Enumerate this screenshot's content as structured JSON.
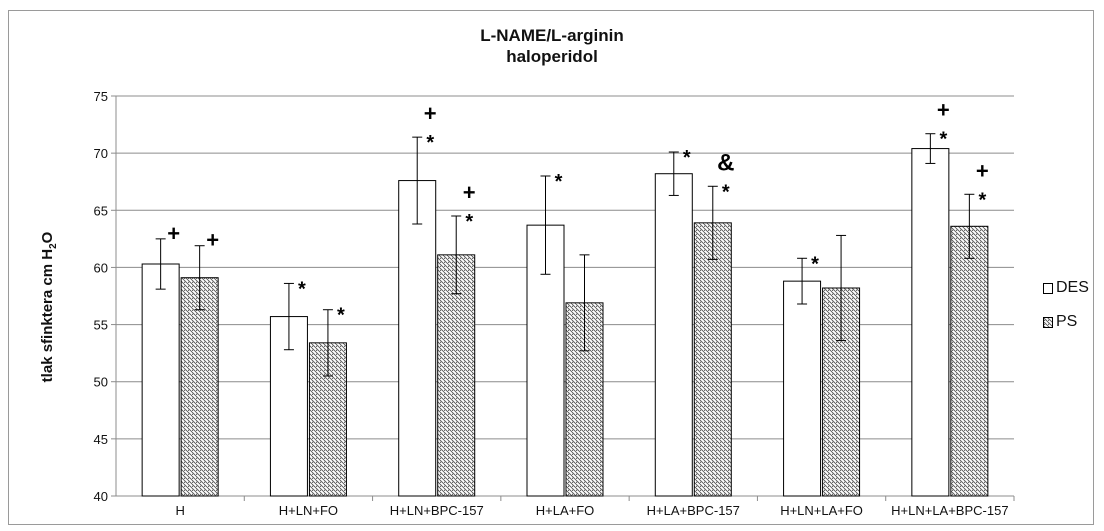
{
  "chart_data": {
    "type": "bar",
    "title": [
      "L-NAME/L-arginin",
      "haloperidol"
    ],
    "ylabel": "tlak sfinktera cm H",
    "ylabel_sub": "2",
    "ylabel_tail": "O",
    "ylim": [
      40,
      75
    ],
    "yticks": [
      "40",
      "45",
      "50",
      "55",
      "60",
      "65",
      "70",
      "75"
    ],
    "categories": [
      "H",
      "H+LN+FO",
      "H+LN+BPC-157",
      "H+LA+FO",
      "H+LA+BPC-157",
      "H+LN+LA+FO",
      "H+LN+LA+BPC-157"
    ],
    "series": [
      {
        "name": "DES",
        "values": [
          60.3,
          55.7,
          67.6,
          63.7,
          68.2,
          58.8,
          70.4
        ],
        "errors": [
          2.2,
          2.9,
          3.8,
          4.3,
          1.9,
          2.0,
          1.3
        ],
        "annotations": [
          [
            "+"
          ],
          [
            "*"
          ],
          [
            "*",
            "+"
          ],
          [
            "*"
          ],
          [
            "*"
          ],
          [
            "*"
          ],
          [
            "*",
            "+"
          ]
        ]
      },
      {
        "name": "PS",
        "values": [
          59.1,
          53.4,
          61.1,
          56.9,
          63.9,
          58.2,
          63.6
        ],
        "errors": [
          2.8,
          2.9,
          3.4,
          4.2,
          3.2,
          4.6,
          2.8
        ],
        "annotations": [
          [
            "+"
          ],
          [
            "*"
          ],
          [
            "*",
            "+"
          ],
          [],
          [
            "*",
            "&"
          ],
          [],
          [
            "*",
            "+"
          ]
        ]
      }
    ],
    "legend_position": "right",
    "grid": true,
    "colors": {
      "grid": "#8c8c8c",
      "axis": "#8c8c8c",
      "bar_edge": "#000000",
      "hatch": "#555555"
    }
  }
}
